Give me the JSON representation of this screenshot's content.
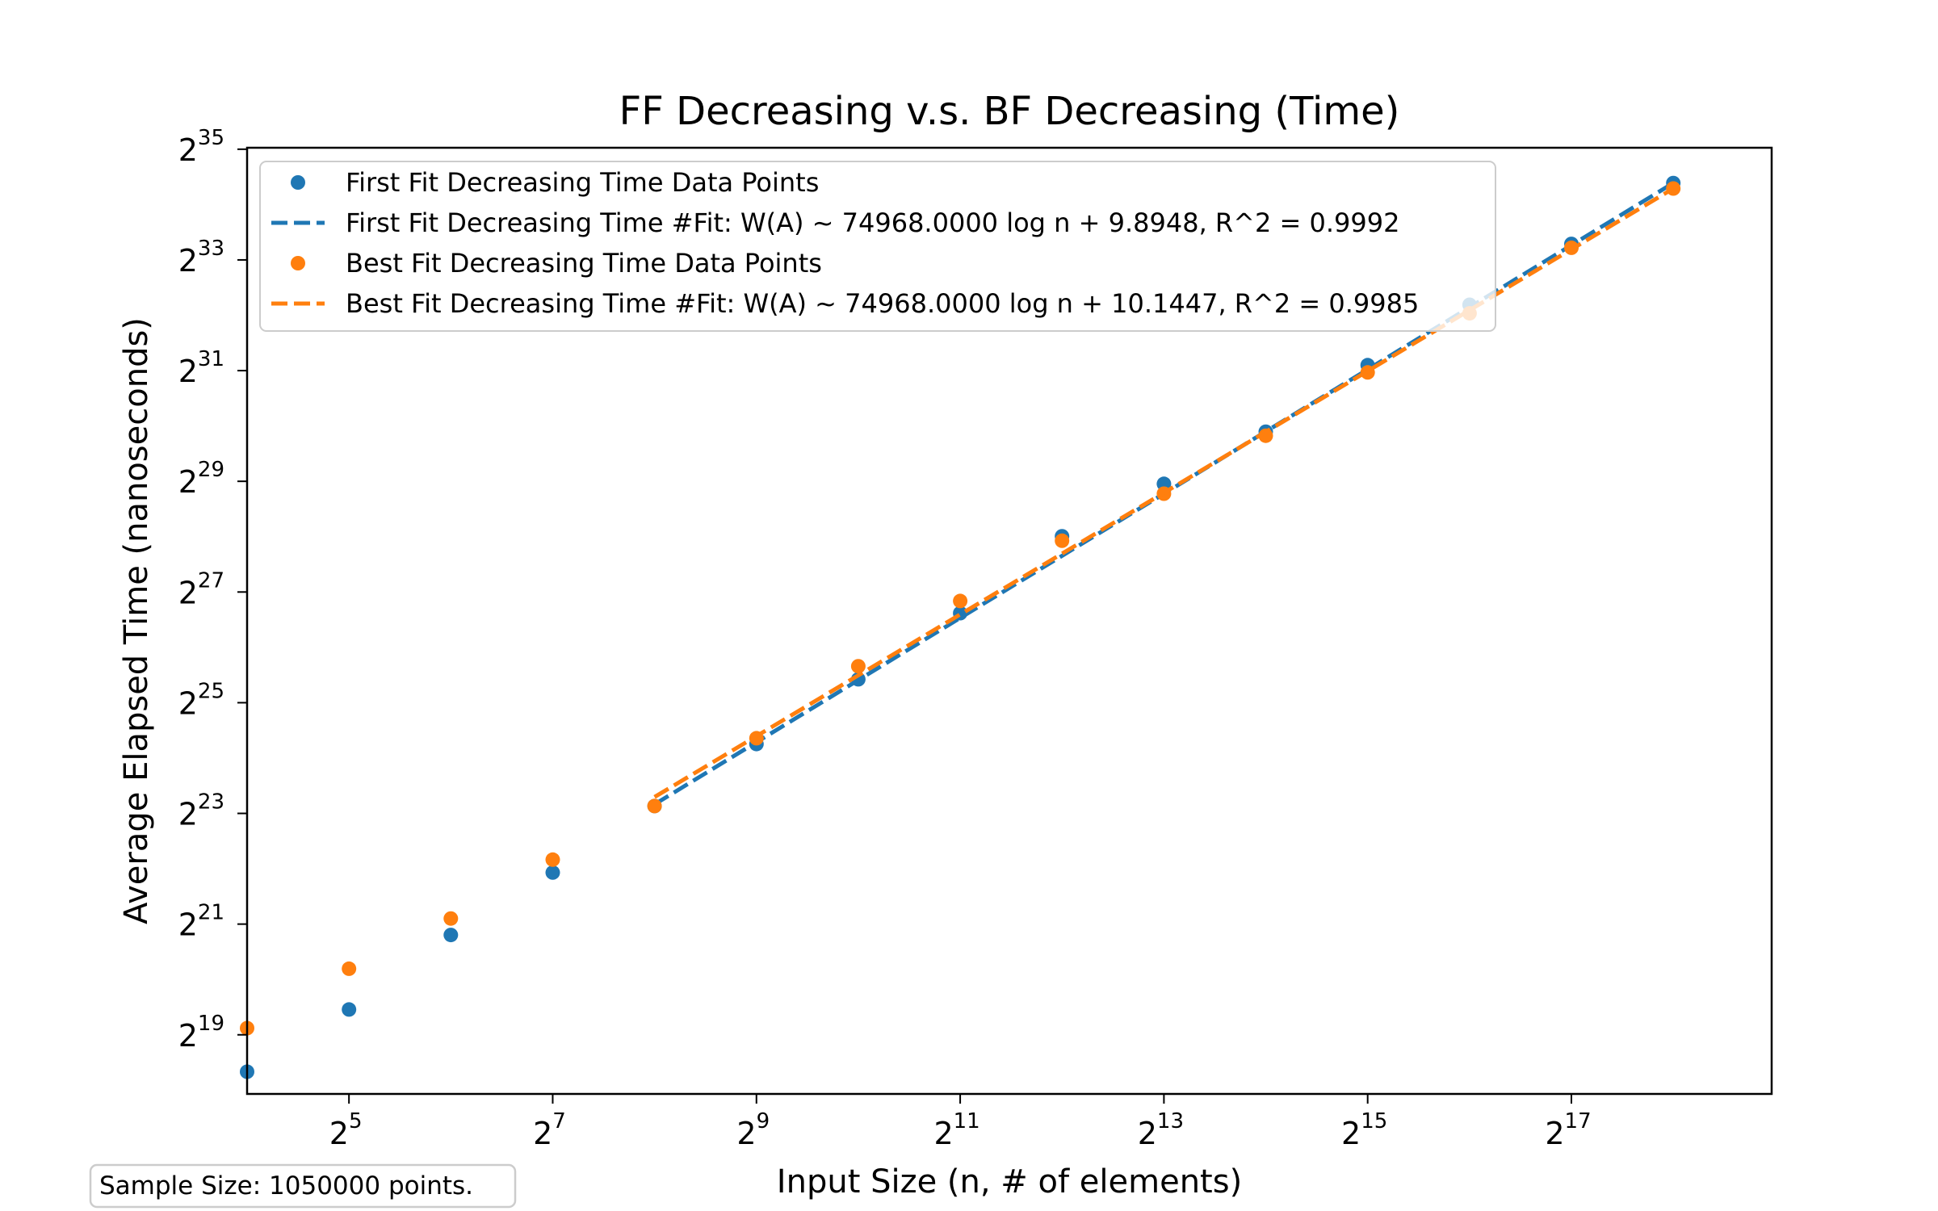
{
  "chart_data": {
    "type": "scatter",
    "title": "FF Decreasing v.s. BF Decreasing (Time)",
    "xlabel": "Input Size (n, # of elements)",
    "ylabel": "Average Elapsed Time (nanoseconds)",
    "x_scale": "log2",
    "y_scale": "log2",
    "xlim": [
      16,
      512000
    ],
    "ylim": [
      250000,
      35000000000
    ],
    "x_ticks": [
      {
        "base": "2",
        "exp": "5",
        "value": 32
      },
      {
        "base": "2",
        "exp": "7",
        "value": 128
      },
      {
        "base": "2",
        "exp": "9",
        "value": 512
      },
      {
        "base": "2",
        "exp": "11",
        "value": 2048
      },
      {
        "base": "2",
        "exp": "13",
        "value": 8192
      },
      {
        "base": "2",
        "exp": "15",
        "value": 32768
      },
      {
        "base": "2",
        "exp": "17",
        "value": 131072
      }
    ],
    "y_ticks": [
      {
        "base": "2",
        "exp": "19",
        "value": 524288
      },
      {
        "base": "2",
        "exp": "21",
        "value": 2097152
      },
      {
        "base": "2",
        "exp": "23",
        "value": 8388608
      },
      {
        "base": "2",
        "exp": "25",
        "value": 33554432
      },
      {
        "base": "2",
        "exp": "27",
        "value": 134217728
      },
      {
        "base": "2",
        "exp": "29",
        "value": 536870912
      },
      {
        "base": "2",
        "exp": "31",
        "value": 2147483648
      },
      {
        "base": "2",
        "exp": "33",
        "value": 8589934592
      },
      {
        "base": "2",
        "exp": "35",
        "value": 34359738368
      }
    ],
    "legend_position": "upper-left",
    "series": [
      {
        "name": "First Fit Decreasing Time Data Points",
        "kind": "points",
        "color": "#1f77b4",
        "x": [
          16,
          32,
          64,
          128,
          256,
          512,
          1024,
          2048,
          4096,
          8192,
          16384,
          32768,
          65536,
          131072,
          262144
        ],
        "y": [
          330000,
          720000,
          1830000,
          4000000,
          9200000,
          20000000,
          45000000,
          103000000,
          270000000,
          520000000,
          1000000000,
          2300000000,
          4900000000,
          10500000000,
          22500000000
        ]
      },
      {
        "name": "First Fit Decreasing Time #Fit: W(A) ~ 74968.0000 log n + 9.8948, R^2 = 0.9992",
        "kind": "fit",
        "color": "#1f77b4",
        "x": [
          256,
          262144
        ],
        "y": [
          9400000,
          22500000000
        ]
      },
      {
        "name": "Best Fit Decreasing Time Data Points",
        "kind": "points",
        "color": "#ff7f0e",
        "x": [
          16,
          32,
          64,
          128,
          256,
          512,
          1024,
          2048,
          4096,
          8192,
          16384,
          32768,
          65536,
          131072,
          262144
        ],
        "y": [
          570000,
          1200000,
          2250000,
          4700000,
          9200000,
          21500000,
          53000000,
          120000000,
          255000000,
          460000000,
          950000000,
          2100000000,
          4400000000,
          10000000000,
          21000000000
        ]
      },
      {
        "name": "Best Fit Decreasing Time #Fit: W(A) ~ 74968.0000 log n + 10.1447, R^2 = 0.9985",
        "kind": "fit",
        "color": "#ff7f0e",
        "x": [
          256,
          262144
        ],
        "y": [
          10300000,
          21000000000
        ]
      }
    ]
  },
  "note": {
    "text": "Sample Size: 1050000 points."
  }
}
